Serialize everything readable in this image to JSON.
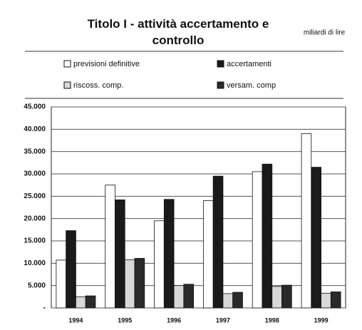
{
  "chart_data": {
    "type": "bar",
    "title": "Titolo I - attività accertamento e controllo",
    "annotation": "miliardi di lire",
    "categories": [
      "1994",
      "1995",
      "1996",
      "1997",
      "1998",
      "1999"
    ],
    "series": [
      {
        "name": "previsioni definitive",
        "color": "#ffffff",
        "values": [
          10700,
          27500,
          19500,
          24000,
          30500,
          39000
        ]
      },
      {
        "name": "accertamenti",
        "color": "#1a1a1a",
        "values": [
          17300,
          24200,
          24300,
          29500,
          32200,
          31500
        ]
      },
      {
        "name": "riscoss. comp.",
        "color": "#d8d8d8",
        "values": [
          2500,
          10800,
          5000,
          3200,
          4800,
          3300
        ]
      },
      {
        "name": "versam. comp",
        "color": "#2a2a2a",
        "values": [
          2700,
          11100,
          5300,
          3500,
          5100,
          3600
        ]
      }
    ],
    "ylim": [
      0,
      45000
    ],
    "yticks": [
      {
        "value": 0,
        "label": "-"
      },
      {
        "value": 5000,
        "label": "5.000"
      },
      {
        "value": 10000,
        "label": "10.000"
      },
      {
        "value": 15000,
        "label": "15.000"
      },
      {
        "value": 20000,
        "label": "20.000"
      },
      {
        "value": 25000,
        "label": "25.000"
      },
      {
        "value": 30000,
        "label": "30.000"
      },
      {
        "value": 35000,
        "label": "35.000"
      },
      {
        "value": 40000,
        "label": "40.000"
      },
      {
        "value": 45000,
        "label": "45.000"
      }
    ],
    "grid": true
  }
}
